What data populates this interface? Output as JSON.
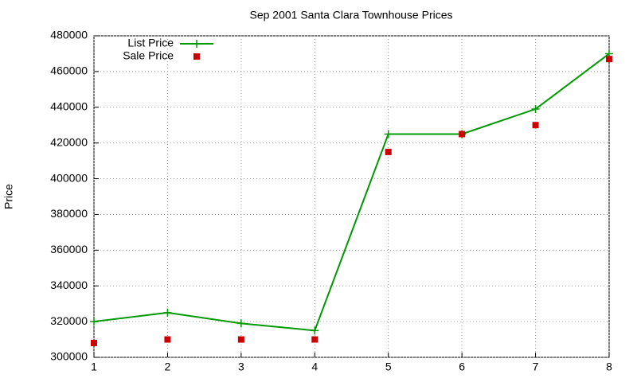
{
  "chart_data": {
    "type": "line",
    "title": "Sep 2001 Santa Clara Townhouse Prices",
    "y_label": "Price",
    "x": [
      1,
      2,
      3,
      4,
      5,
      6,
      7,
      8
    ],
    "series": [
      {
        "name": "List Price",
        "color": "#009900",
        "line": true,
        "marker": "plus",
        "values": [
          320000,
          325000,
          319000,
          315000,
          425000,
          425000,
          439000,
          470000
        ]
      },
      {
        "name": "Sale Price",
        "color": "#cc0000",
        "line": false,
        "marker": "square",
        "values": [
          308000,
          310000,
          310000,
          310000,
          415000,
          425000,
          430000,
          467000
        ]
      }
    ],
    "xlim": [
      1,
      8
    ],
    "xticks": [
      1,
      2,
      3,
      4,
      5,
      6,
      7,
      8
    ],
    "ylim": [
      300000,
      480000
    ],
    "yticks": [
      300000,
      320000,
      340000,
      360000,
      380000,
      400000,
      420000,
      440000,
      460000,
      480000
    ],
    "grid": true,
    "legend": "top-left"
  }
}
